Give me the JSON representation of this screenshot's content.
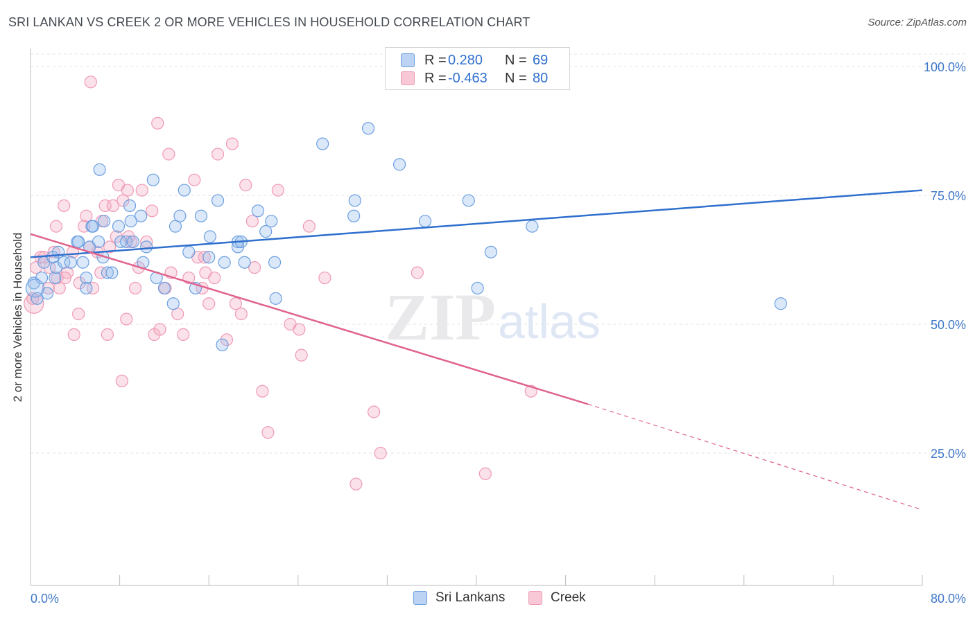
{
  "title": "SRI LANKAN VS CREEK 2 OR MORE VEHICLES IN HOUSEHOLD CORRELATION CHART",
  "source": "Source: ZipAtlas.com",
  "watermark": {
    "zip": "ZIP",
    "atlas": "atlas"
  },
  "legend": {
    "r_label": "R =",
    "n_label": "N =",
    "rows": [
      {
        "r": "0.280",
        "n": "69"
      },
      {
        "r": "-0.463",
        "n": "80"
      }
    ]
  },
  "chart_data": {
    "type": "scatter",
    "title": "SRI LANKAN VS CREEK 2 OR MORE VEHICLES IN HOUSEHOLD CORRELATION CHART",
    "xlabel": "",
    "ylabel": "2 or more Vehicles in Household",
    "xlim": [
      0,
      80
    ],
    "ylim": [
      0,
      105
    ],
    "x_tick_labels": [
      "0.0%",
      "80.0%"
    ],
    "y_ticks": [
      25,
      50,
      75,
      100
    ],
    "y_tick_labels": [
      "25.0%",
      "50.0%",
      "75.0%",
      "100.0%"
    ],
    "grid": true,
    "legend_position": "top-center",
    "colors": {
      "sri_lankans": "#6c9fe0",
      "creek": "#ef9ab5",
      "blue_line": "#2f6fce",
      "pink_line": "#e0628e",
      "tick_text": "#3f77c9"
    },
    "series": [
      {
        "name": "Sri Lankans",
        "r": 0.28,
        "n": 69,
        "trend": {
          "x": [
            0,
            80
          ],
          "y": [
            63.0,
            76.0
          ]
        },
        "points": [
          [
            0.3,
            58
          ],
          [
            0.6,
            55
          ],
          [
            1,
            59
          ],
          [
            1.2,
            62
          ],
          [
            1.5,
            56
          ],
          [
            2,
            63
          ],
          [
            2.2,
            59
          ],
          [
            2.3,
            61
          ],
          [
            2.5,
            64
          ],
          [
            3,
            62
          ],
          [
            3.6,
            62
          ],
          [
            4.2,
            66
          ],
          [
            4.3,
            66
          ],
          [
            4.7,
            62
          ],
          [
            5,
            59
          ],
          [
            5,
            57
          ],
          [
            5.3,
            65
          ],
          [
            5.5,
            69
          ],
          [
            5.6,
            69
          ],
          [
            6.1,
            66
          ],
          [
            6.2,
            80
          ],
          [
            6.5,
            63
          ],
          [
            6.6,
            70
          ],
          [
            6.9,
            60
          ],
          [
            7.3,
            60
          ],
          [
            7.9,
            69
          ],
          [
            8.1,
            66
          ],
          [
            8.6,
            66
          ],
          [
            8.9,
            73
          ],
          [
            9.2,
            66
          ],
          [
            9.9,
            71
          ],
          [
            10.1,
            62
          ],
          [
            10.4,
            65
          ],
          [
            11,
            78
          ],
          [
            11.3,
            59
          ],
          [
            12,
            57
          ],
          [
            12.8,
            54
          ],
          [
            13,
            69
          ],
          [
            13.4,
            71
          ],
          [
            13.8,
            76
          ],
          [
            14.2,
            64
          ],
          [
            14.8,
            57
          ],
          [
            15.3,
            71
          ],
          [
            16,
            63
          ],
          [
            16.1,
            67
          ],
          [
            16.8,
            74
          ],
          [
            17.2,
            46
          ],
          [
            17.4,
            62
          ],
          [
            18.6,
            65
          ],
          [
            18.6,
            66
          ],
          [
            18.9,
            66
          ],
          [
            19.2,
            62
          ],
          [
            20.4,
            72
          ],
          [
            21.1,
            68
          ],
          [
            21.6,
            70
          ],
          [
            21.9,
            62
          ],
          [
            26.2,
            85
          ],
          [
            29,
            71
          ],
          [
            29.1,
            74
          ],
          [
            30.3,
            88
          ],
          [
            33.1,
            81
          ],
          [
            35.4,
            70
          ],
          [
            39.3,
            74
          ],
          [
            40.1,
            57
          ],
          [
            41.3,
            64
          ],
          [
            45,
            69
          ],
          [
            67.3,
            54
          ],
          [
            22,
            55
          ],
          [
            9,
            70
          ]
        ]
      },
      {
        "name": "Creek",
        "r": -0.463,
        "n": 80,
        "trend": {
          "x": [
            0,
            50
          ],
          "y": [
            67.5,
            34.5
          ]
        },
        "trend_dashed": {
          "x": [
            50,
            80
          ],
          "y": [
            34.5,
            14.0
          ]
        },
        "points": [
          [
            0.2,
            55
          ],
          [
            0.5,
            61
          ],
          [
            0.9,
            63
          ],
          [
            1.2,
            63
          ],
          [
            1.6,
            57
          ],
          [
            1.7,
            61
          ],
          [
            2.1,
            64
          ],
          [
            2.3,
            69
          ],
          [
            2.4,
            59
          ],
          [
            2.6,
            57
          ],
          [
            3,
            73
          ],
          [
            3.3,
            60
          ],
          [
            3.8,
            64
          ],
          [
            3.9,
            48
          ],
          [
            4.3,
            52
          ],
          [
            4.4,
            58
          ],
          [
            4.8,
            69
          ],
          [
            5,
            71
          ],
          [
            5.3,
            65
          ],
          [
            5.6,
            57
          ],
          [
            6,
            64
          ],
          [
            6.3,
            60
          ],
          [
            6.4,
            70
          ],
          [
            6.7,
            73
          ],
          [
            6.9,
            48
          ],
          [
            7.1,
            65
          ],
          [
            7.7,
            67
          ],
          [
            7.9,
            77
          ],
          [
            8.2,
            39
          ],
          [
            8.3,
            74
          ],
          [
            8.6,
            51
          ],
          [
            8.7,
            76
          ],
          [
            8.8,
            67
          ],
          [
            9,
            66
          ],
          [
            9.4,
            57
          ],
          [
            10,
            76
          ],
          [
            10.4,
            66
          ],
          [
            10.9,
            72
          ],
          [
            11.1,
            48
          ],
          [
            11.4,
            89
          ],
          [
            11.6,
            49
          ],
          [
            12.4,
            83
          ],
          [
            12.6,
            60
          ],
          [
            13.2,
            52
          ],
          [
            13.7,
            48
          ],
          [
            14.2,
            59
          ],
          [
            14.7,
            78
          ],
          [
            15,
            63
          ],
          [
            15.4,
            57
          ],
          [
            15.6,
            63
          ],
          [
            16,
            54
          ],
          [
            16.5,
            59
          ],
          [
            16.8,
            83
          ],
          [
            17.6,
            47
          ],
          [
            18.1,
            85
          ],
          [
            18.4,
            54
          ],
          [
            18.9,
            52
          ],
          [
            19.3,
            77
          ],
          [
            20.1,
            61
          ],
          [
            20.8,
            37
          ],
          [
            21.3,
            29
          ],
          [
            22.2,
            76
          ],
          [
            23.3,
            50
          ],
          [
            24.1,
            49
          ],
          [
            24.3,
            44
          ],
          [
            25,
            69
          ],
          [
            26.4,
            59
          ],
          [
            29.2,
            19
          ],
          [
            30.8,
            33
          ],
          [
            31.4,
            25
          ],
          [
            34.7,
            60
          ],
          [
            40.8,
            21
          ],
          [
            44.9,
            37
          ],
          [
            5.4,
            97
          ],
          [
            12.1,
            57
          ],
          [
            3.1,
            59
          ],
          [
            7.4,
            73
          ],
          [
            9.7,
            61
          ],
          [
            15.7,
            60
          ],
          [
            19.9,
            70
          ]
        ]
      }
    ]
  },
  "bottom_legend": [
    "Sri Lankans",
    "Creek"
  ]
}
